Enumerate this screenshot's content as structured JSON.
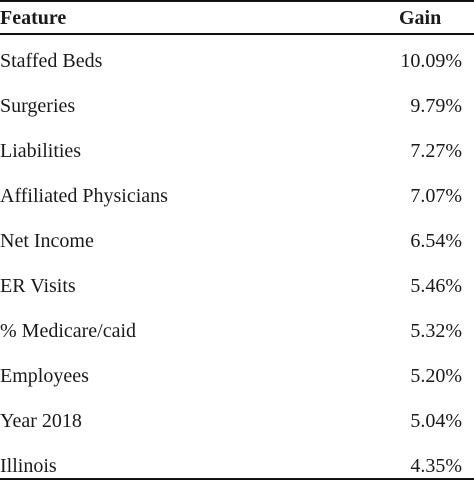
{
  "table": {
    "columns": {
      "feature": "Feature",
      "gain": "Gain"
    },
    "rows": [
      {
        "feature": "Staffed Beds",
        "gain": "10.09%"
      },
      {
        "feature": "Surgeries",
        "gain": "9.79%"
      },
      {
        "feature": "Liabilities",
        "gain": "7.27%"
      },
      {
        "feature": "Affiliated Physicians",
        "gain": "7.07%"
      },
      {
        "feature": "Net Income",
        "gain": "6.54%"
      },
      {
        "feature": "ER Visits",
        "gain": "5.46%"
      },
      {
        "feature": "% Medicare/caid",
        "gain": "5.32%"
      },
      {
        "feature": "Employees",
        "gain": "5.20%"
      },
      {
        "feature": "Year 2018",
        "gain": "5.04%"
      },
      {
        "feature": "Illinois",
        "gain": "4.35%"
      }
    ]
  },
  "colors": {
    "text": "#1a1a1a",
    "rule": "#111111",
    "background": "#ffffff"
  }
}
